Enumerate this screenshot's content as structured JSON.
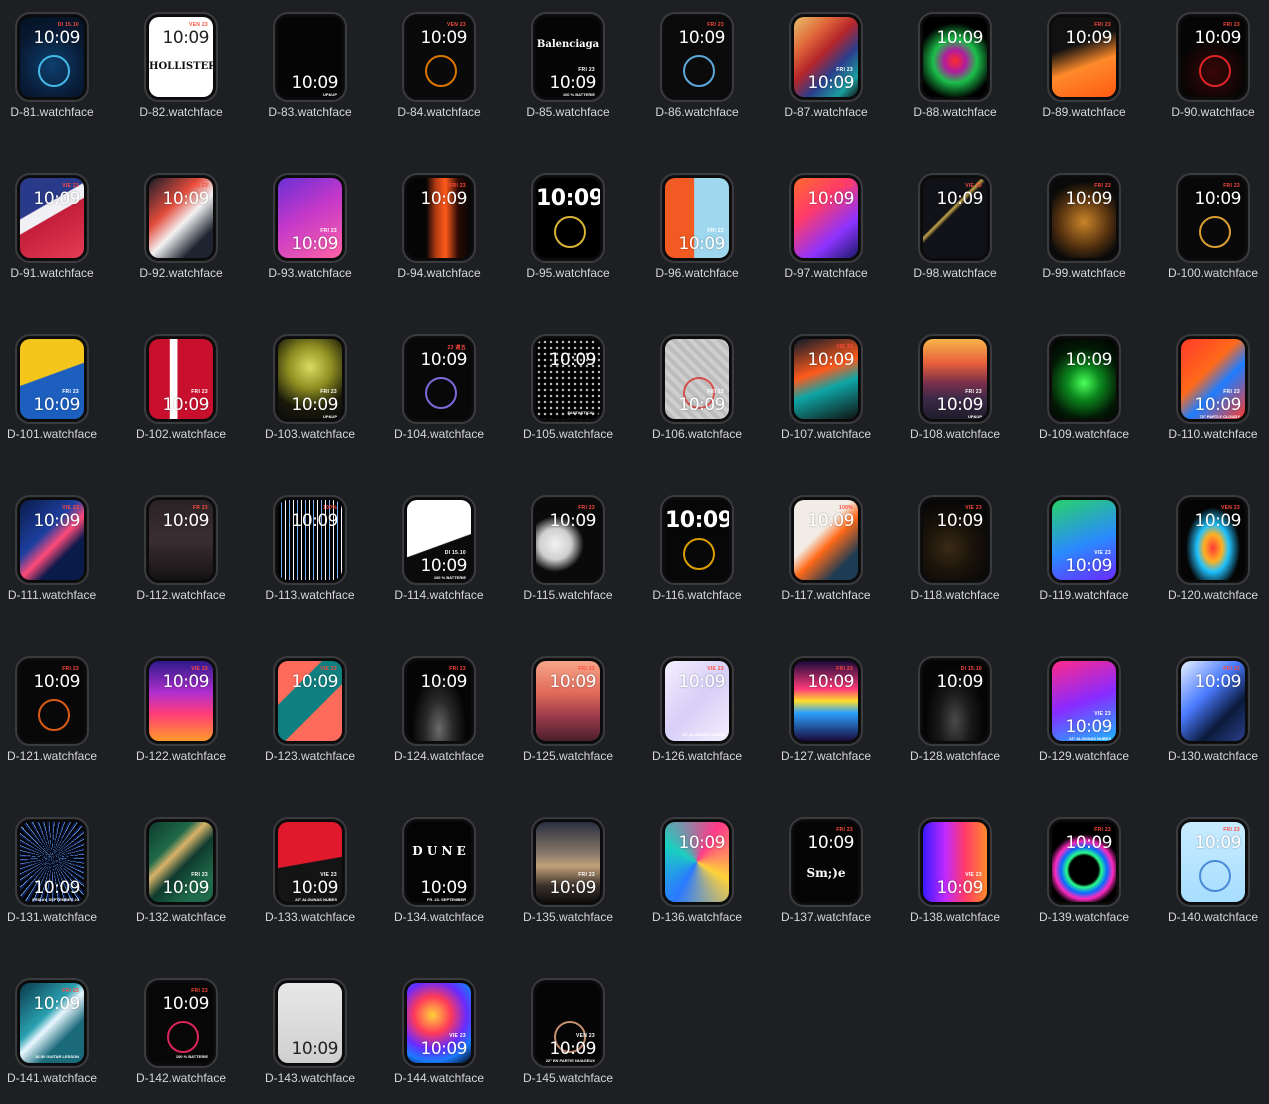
{
  "faces": [
    {
      "name": "D-81.watchface",
      "time": "10:09",
      "date": "DI 15.10",
      "bg": "radial-gradient(circle at 50% 60%, #0d3f6e 0%, #081a33 60%, #04101f 100%)",
      "pos": "top",
      "accent": "#4fd1ff"
    },
    {
      "name": "D-82.watchface",
      "time": "10:09",
      "date": "VEN 23",
      "bg": "#ffffff",
      "pos": "top",
      "dark": true,
      "overlay": "HOLLISTER"
    },
    {
      "name": "D-83.watchface",
      "time": "10:09",
      "date": "",
      "bg": "#050505",
      "pos": "bottom",
      "sub": "UP&UP"
    },
    {
      "name": "D-84.watchface",
      "time": "10:09",
      "date": "VEN 23",
      "bg": "#0a0a0a",
      "pos": "top",
      "accent": "#ff8a00"
    },
    {
      "name": "D-85.watchface",
      "time": "10:09",
      "date": "FRI 23",
      "bg": "#050505",
      "pos": "bottom",
      "overlay": "Balenciaga",
      "sub": "100 % BATTERIE"
    },
    {
      "name": "D-86.watchface",
      "time": "10:09",
      "date": "FRI 23",
      "bg": "#0b0b0b",
      "pos": "top",
      "accent": "#6cc4ff"
    },
    {
      "name": "D-87.watchface",
      "time": "10:09",
      "date": "FRI 23",
      "bg": "linear-gradient(135deg, #e8c16a 0%, #e06a3b 25%, #b8262b 45%, #2a3e8c 65%, #1b9e9e 85%, #101010 100%)",
      "pos": "bottom"
    },
    {
      "name": "D-88.watchface",
      "time": "10:09",
      "date": "",
      "bg": "radial-gradient(circle at 50% 55%, #ff2b2b 0%, #b11d9d 20%, #1bbf4a 40%, #000 70%)",
      "pos": "top"
    },
    {
      "name": "D-89.watchface",
      "time": "10:09",
      "date": "FRI 23",
      "bg": "linear-gradient(160deg, #111 0%, #111 35%, #ff8a2a 60%, #ff5a12 100%)",
      "pos": "top"
    },
    {
      "name": "D-90.watchface",
      "time": "10:09",
      "date": "FRI 23",
      "bg": "radial-gradient(circle at 50% 70%, #3a0606 0%, #050505 55%)",
      "pos": "top",
      "overlay": "",
      "accent": "#ff2b2b"
    },
    {
      "name": "D-91.watchface",
      "time": "10:09",
      "date": "VIE 23",
      "bg": "linear-gradient(150deg, #2a3a8a 0%, #2a3a8a 35%, #f0f0f5 36%, #f0f0f5 48%, #c21e3a 49%, #e63b55 100%)",
      "pos": "top"
    },
    {
      "name": "D-92.watchface",
      "time": "10:09",
      "date": "FRI 23",
      "bg": "linear-gradient(135deg, #1a1d2a 0%, #e24b3b 35%, #f2f2f2 55%, #1e2430 80%)",
      "pos": "top"
    },
    {
      "name": "D-93.watchface",
      "time": "10:09",
      "date": "FRI 23",
      "bg": "linear-gradient(150deg, #6a2fd6 0%, #c438c9 45%, #ff63a6 100%)",
      "pos": "bottom"
    },
    {
      "name": "D-94.watchface",
      "time": "10:09",
      "date": "FRI 23",
      "bg": "linear-gradient(90deg, #050505 0%, #050505 30%, #b23a12 45%, #ff5a1c 60%, #2a0a04 80%, #050505 100%)",
      "pos": "top"
    },
    {
      "name": "D-95.watchface",
      "time": "10:09",
      "date": "",
      "bg": "#000000",
      "pos": "center",
      "accent": "#ffd23f"
    },
    {
      "name": "D-96.watchface",
      "time": "10:09",
      "date": "FRI 23",
      "bg": "linear-gradient(90deg, #f15a22 0%, #f15a22 45%, #9fd7ef 46%, #9fd7ef 100%)",
      "pos": "bottom"
    },
    {
      "name": "D-97.watchface",
      "time": "10:09",
      "date": "VIE 23",
      "bg": "linear-gradient(140deg, #ff6b2b 0%, #ff3b6b 35%, #8c33ff 70%, #1a1a66 100%)",
      "pos": "top"
    },
    {
      "name": "D-98.watchface",
      "time": "10:09",
      "date": "VIE 23",
      "bg": "linear-gradient(135deg, #101218 0%, #101218 40%, #c9a64a 42%, #101218 46%, #101218 100%)",
      "pos": "top"
    },
    {
      "name": "D-99.watchface",
      "time": "10:09",
      "date": "FRI 23",
      "bg": "radial-gradient(circle at 50% 55%, #c8852a 0%, #5a3410 45%, #0a0a0a 75%)",
      "pos": "top"
    },
    {
      "name": "D-100.watchface",
      "time": "10:09",
      "date": "FRI 23",
      "bg": "#080808",
      "pos": "top",
      "accent": "#ffb73a"
    },
    {
      "name": "D-101.watchface",
      "time": "10:09",
      "date": "FRI 23",
      "bg": "linear-gradient(160deg, #f4c51b 0%, #f4c51b 45%, #1c5fbf 46%, #1c5fbf 100%)",
      "pos": "bottom"
    },
    {
      "name": "D-102.watchface",
      "time": "10:09",
      "date": "FRI 23",
      "bg": "linear-gradient(90deg, #c8102e 0%, #c8102e 32%, #ffffff 33%, #ffffff 44%, #c8102e 45%, #c8102e 100%)",
      "pos": "bottom"
    },
    {
      "name": "D-103.watchface",
      "time": "10:09",
      "date": "FRI 23",
      "bg": "radial-gradient(circle at 50% 35%, #d9dc62 0%, #8f8f22 35%, #1a1a0a 70%, #0a0a0a 100%)",
      "pos": "bottom",
      "sub": "UP&UP"
    },
    {
      "name": "D-104.watchface",
      "time": "10:09",
      "date": "23 週五",
      "bg": "#080808",
      "pos": "top",
      "accent": "#8e7cff"
    },
    {
      "name": "D-105.watchface",
      "time": "10:09",
      "date": "",
      "bg": "radial-gradient(circle, #bdbdbd 1px, #000 1.5px) 0 0/6px 6px",
      "pos": "top",
      "sub": "FANTASTICAL"
    },
    {
      "name": "D-106.watchface",
      "time": "10:09",
      "date": "FRI 23",
      "bg": "repeating-linear-gradient(45deg, #cfcfcf 0 4px, #bdbdbd 4px 8px)",
      "pos": "bottom",
      "accent": "#d83a3a"
    },
    {
      "name": "D-107.watchface",
      "time": "10:09",
      "date": "VIE 23",
      "bg": "linear-gradient(160deg, #0d1a2a 0%, #ff5a1c 40%, #0ea5a5 60%, #111 100%)",
      "pos": "top"
    },
    {
      "name": "D-108.watchface",
      "time": "10:09",
      "date": "FRI 23",
      "bg": "linear-gradient(180deg, #f7b54a 0%, #e8603c 30%, #7a2f4a 55%, #3b2a48 75%, #1f1c2c 100%)",
      "pos": "bottom",
      "sub": "UP&UP"
    },
    {
      "name": "D-109.watchface",
      "time": "10:09",
      "date": "",
      "bg": "radial-gradient(circle at 50% 55%, #4bff5a 0%, #0d8a1f 30%, #021a05 65%, #000 100%)",
      "pos": "top"
    },
    {
      "name": "D-110.watchface",
      "time": "10:09",
      "date": "FRI 23",
      "bg": "linear-gradient(135deg, #ff3a2a 0%, #ff6a1a 40%, #1e7dff 60%, #ff3a2a 100%)",
      "pos": "bottom",
      "sub": "72° PARTLY CLOUDY"
    },
    {
      "name": "D-111.watchface",
      "time": "10:09",
      "date": "VIE 23",
      "bg": "linear-gradient(135deg, #0a1a4a 0%, #1e3fa0 40%, #ff4b7a 55%, #0a1a4a 70%)",
      "pos": "top"
    },
    {
      "name": "D-112.watchface",
      "time": "10:09",
      "date": "FR 23",
      "bg": "linear-gradient(180deg, #2a2226 0%, #3b2e33 50%, #151214 100%)",
      "pos": "top"
    },
    {
      "name": "D-113.watchface",
      "time": "10:09",
      "date": "100%",
      "bg": "repeating-linear-gradient(90deg, #000 0 3px, #7ab6ff 3px 4px, #000 4px 7px, #ffffff 7px 8px)",
      "pos": "top"
    },
    {
      "name": "D-114.watchface",
      "time": "10:09",
      "date": "DI 15.10",
      "bg": "linear-gradient(160deg, #ffffff 0%, #ffffff 55%, #0b0b0b 56%, #0b0b0b 100%)",
      "pos": "bottom",
      "sub": "100 % BATTERIE"
    },
    {
      "name": "D-115.watchface",
      "time": "10:09",
      "date": "FRI 23",
      "bg": "radial-gradient(ellipse at 30% 55%, #f2f2f2 0%, #cfcfcf 25%, #0a0a0a 45%)",
      "pos": "top"
    },
    {
      "name": "D-116.watchface",
      "time": "10:09",
      "date": "",
      "bg": "#070707",
      "pos": "center",
      "accent": "#ffb800"
    },
    {
      "name": "D-117.watchface",
      "time": "10:09",
      "date": "100%",
      "bg": "linear-gradient(135deg, #f2ece6 0%, #f2ece6 40%, #ff6a1a 55%, #1d3b52 80%)",
      "pos": "top"
    },
    {
      "name": "D-118.watchface",
      "time": "10:09",
      "date": "VIE 23",
      "bg": "radial-gradient(circle at 40% 60%, #3a2a14 0%, #1a130a 40%, #070707 80%)",
      "pos": "top"
    },
    {
      "name": "D-119.watchface",
      "time": "10:09",
      "date": "VIE 23",
      "bg": "linear-gradient(160deg, #27d26a 0%, #2a8aff 55%, #6b2bff 100%)",
      "pos": "bottom"
    },
    {
      "name": "D-120.watchface",
      "time": "10:09",
      "date": "VEN 23",
      "bg": "radial-gradient(ellipse at 50% 60%, #ff3a3a 0%, #ffb020 20%, #20c2ff 35%, #050505 60%)",
      "pos": "top"
    },
    {
      "name": "D-121.watchface",
      "time": "10:09",
      "date": "FRI 23",
      "bg": "#080808",
      "pos": "top",
      "accent": "#ff6a1a"
    },
    {
      "name": "D-122.watchface",
      "time": "10:09",
      "date": "VIE 23",
      "bg": "linear-gradient(180deg, #2e1a8a 0%, #b02fcf 40%, #ff3b7a 65%, #ff9a2a 100%)",
      "pos": "top"
    },
    {
      "name": "D-123.watchface",
      "time": "10:09",
      "date": "VIE 23",
      "bg": "linear-gradient(135deg, #ff6b5b 0%, #ff6b5b 30%, #0f7f7f 31%, #0f7f7f 60%, #ff6b5b 61%)",
      "pos": "top"
    },
    {
      "name": "D-124.watchface",
      "time": "10:09",
      "date": "FRI 23",
      "bg": "radial-gradient(ellipse at 50% 85%, #6a6a6a 0%, #2a2a2a 30%, #050505 60%)",
      "pos": "top"
    },
    {
      "name": "D-125.watchface",
      "time": "10:09",
      "date": "FRI 23",
      "bg": "linear-gradient(180deg, #f7a58a 0%, #e06a5a 40%, #9a3a4a 70%, #4a1f2a 100%)",
      "pos": "top"
    },
    {
      "name": "D-126.watchface",
      "time": "10:09",
      "date": "VIE 23",
      "bg": "linear-gradient(135deg, #f4efff 0%, #d8cff7 50%, #f4efff 100%)",
      "pos": "top",
      "sub": "22° ALGUNAS NUBES"
    },
    {
      "name": "D-127.watchface",
      "time": "10:09",
      "date": "FRI 23",
      "bg": "linear-gradient(180deg, #1a0a3a 0%, #ff3a7a 35%, #ffdf2a 50%, #2aa0ff 65%, #1a0a3a 100%)",
      "pos": "top"
    },
    {
      "name": "D-128.watchface",
      "time": "10:09",
      "date": "DI 15.10",
      "bg": "radial-gradient(ellipse at 50% 75%, #4a4a4a 0%, #1a1a1a 35%, #050505 65%)",
      "pos": "top"
    },
    {
      "name": "D-129.watchface",
      "time": "10:09",
      "date": "VIE 23",
      "bg": "linear-gradient(160deg, #ff2a8a 0%, #8a2aff 50%, #1ab7ff 100%)",
      "pos": "bottom",
      "sub": "22° ALGUNAS NUBES"
    },
    {
      "name": "D-130.watchface",
      "time": "10:09",
      "date": "FRI 23",
      "bg": "linear-gradient(135deg, #e6f0ff 0%, #4a7aff 40%, #0a1a3a 70%, #2a3f8a 100%)",
      "pos": "top"
    },
    {
      "name": "D-131.watchface",
      "time": "10:09",
      "date": "",
      "bg": "repeating-conic-gradient(from 0deg at 50% 45%, #0a1a4a 0deg 3deg, #7ab6ff 3deg 4deg, #000 4deg 8deg)",
      "pos": "bottom",
      "sub": "FRIDAY, SEPTEMBER 23"
    },
    {
      "name": "D-132.watchface",
      "time": "10:09",
      "date": "FRI 23",
      "bg": "linear-gradient(135deg, #0e3b2e 0%, #1f6a4a 30%, #d8b36a 40%, #0e3b2e 55%, #1f6a4a 80%)",
      "pos": "bottom"
    },
    {
      "name": "D-133.watchface",
      "time": "10:09",
      "date": "VIE 23",
      "bg": "linear-gradient(170deg, #e0192d 0%, #e0192d 50%, #141414 51%, #141414 100%)",
      "pos": "bottom",
      "sub": "22° ALGUNAS NUBES"
    },
    {
      "name": "D-134.watchface",
      "time": "10:09",
      "date": "",
      "bg": "#040404",
      "pos": "bottom",
      "overlay": "D U N E",
      "sub": "FR. 23. SEPTEMBER"
    },
    {
      "name": "D-135.watchface",
      "time": "10:09",
      "date": "FRI 23",
      "bg": "linear-gradient(180deg, #2a3040 0%, #8a7a6a 40%, #c2a27a 55%, #3a302a 80%, #101010 100%)",
      "pos": "bottom"
    },
    {
      "name": "D-136.watchface",
      "time": "10:09",
      "date": "",
      "bg": "conic-gradient(from 30deg, #ff3b8a, #ffd23a, #2a7aff, #1ad0c0, #ff3b8a)",
      "pos": "top"
    },
    {
      "name": "D-137.watchface",
      "time": "10:09",
      "date": "FRI 23",
      "bg": "#050505",
      "pos": "top",
      "overlay": "Sm;)e",
      "sub": ""
    },
    {
      "name": "D-138.watchface",
      "time": "10:09",
      "date": "VIE 23",
      "bg": "linear-gradient(90deg, #3a1aff 0%, #c02aff 35%, #ff3a6a 65%, #ff8a2a 100%)",
      "pos": "bottom"
    },
    {
      "name": "D-139.watchface",
      "time": "10:09",
      "date": "FRI 23",
      "bg": "radial-gradient(circle at 50% 60%, #000 0%, #000 25%, #2aff8a 30%, #0a6aff 40%, #ff2ac0 50%, #000 62%)",
      "pos": "top"
    },
    {
      "name": "D-140.watchface",
      "time": "10:09",
      "date": "FRI 23",
      "bg": "linear-gradient(180deg, #c8ecff 0%, #a7ddff 100%)",
      "pos": "top",
      "accent": "#3a7ad0"
    },
    {
      "name": "D-141.watchface",
      "time": "10:09",
      "date": "FRI 23",
      "bg": "linear-gradient(135deg, #0a3a4a 0%, #2aa0b0 40%, #eaf7ff 50%, #1a6a7a 70%)",
      "pos": "top",
      "sub": "16:30 GUITAR LESSON"
    },
    {
      "name": "D-142.watchface",
      "time": "10:09",
      "date": "FRI 23",
      "bg": "#070707",
      "pos": "top",
      "accent": "#ff2a6a",
      "sub": "100 % BATTERIE"
    },
    {
      "name": "D-143.watchface",
      "time": "10:09",
      "date": "",
      "bg": "linear-gradient(180deg, #e8e8e8 0%, #cfcfcf 100%)",
      "pos": "bottom",
      "dark": true
    },
    {
      "name": "D-144.watchface",
      "time": "10:09",
      "date": "VIE 23",
      "bg": "radial-gradient(circle at 40% 40%, #ffd23a 0%, #ff3a5a 30%, #6a2aff 55%, #1a7aff 75%, #050505 100%)",
      "pos": "bottom"
    },
    {
      "name": "D-145.watchface",
      "time": "10:09",
      "date": "VEN 23",
      "bg": "#050505",
      "pos": "bottom",
      "accent": "#e8a882",
      "sub": "22° EN PARTIE NUAGEUX"
    }
  ]
}
